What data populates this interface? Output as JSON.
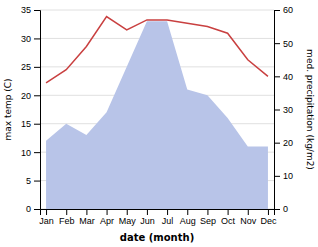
{
  "chart_data": {
    "type": "area",
    "categories": [
      "Jan",
      "Feb",
      "Mar",
      "Apr",
      "May",
      "Jun",
      "Jul",
      "Aug",
      "Sep",
      "Oct",
      "Nov",
      "Dec"
    ],
    "series": [
      {
        "type": "area",
        "color": "#b8c4e8",
        "values": [
          12,
          15,
          13,
          17,
          25,
          33,
          33,
          21,
          20,
          16,
          11,
          11
        ]
      },
      {
        "type": "line",
        "color": "#c94040",
        "axis": "y2",
        "values": [
          38,
          42,
          49,
          58,
          54,
          57,
          57,
          56,
          55,
          53,
          45,
          40
        ]
      }
    ],
    "xlabel": "date (month)",
    "ylabel": "max temp (C)",
    "y2label": "med. precipitation (kg/m2)",
    "ylim": [
      0,
      35
    ],
    "yticks": [
      0,
      5,
      10,
      15,
      20,
      25,
      30,
      35
    ],
    "y2lim": [
      0,
      60
    ],
    "y2ticks": [
      0,
      10,
      20,
      30,
      40,
      50,
      60
    ],
    "grid": true
  }
}
